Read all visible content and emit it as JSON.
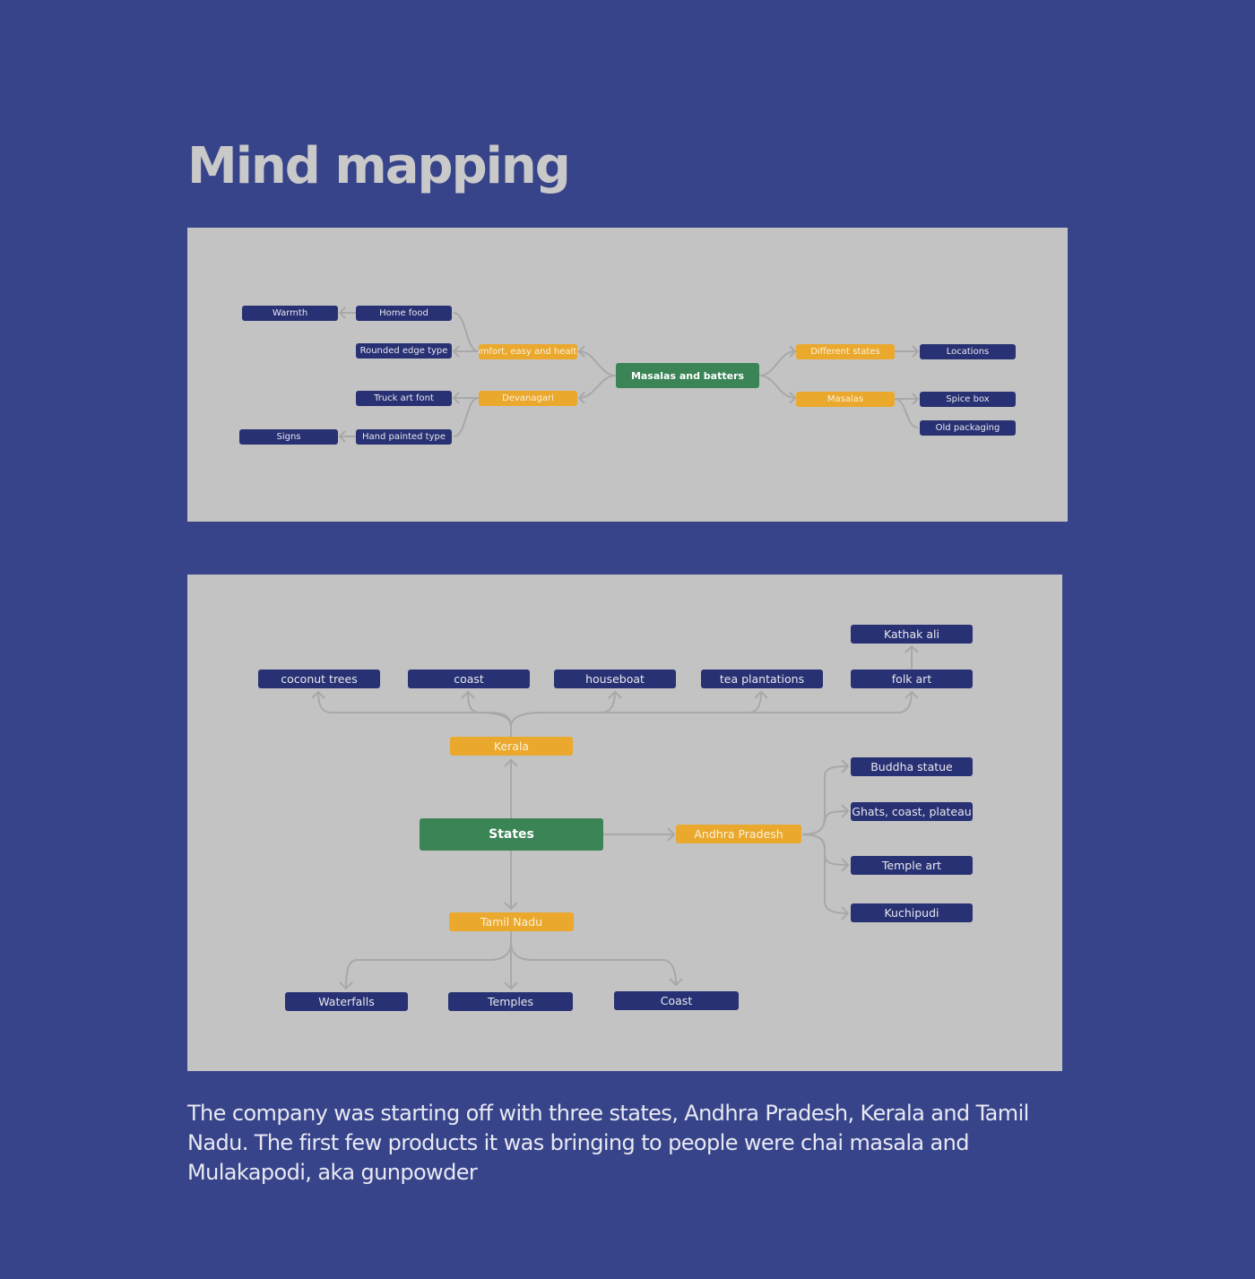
{
  "title": "Mind mapping",
  "map1": {
    "root": "Masalas and batters",
    "comfort": "Comfort, easy and healthy",
    "devanagari": "Devanagari",
    "home_food": "Home food",
    "warmth": "Warmth",
    "rounded": "Rounded edge type",
    "truck": "Truck art font",
    "hand_painted": "Hand painted type",
    "signs": "Signs",
    "different_states": "Different states",
    "locations": "Locations",
    "masalas": "Masalas",
    "spice_box": "Spice box",
    "old_packaging": "Old packaging"
  },
  "map2": {
    "root": "States",
    "kerala": "Kerala",
    "andhra": "Andhra Pradesh",
    "tamil": "Tamil Nadu",
    "coconut": "coconut trees",
    "coast_k": "coast",
    "houseboat": "houseboat",
    "tea": "tea plantations",
    "folk": "folk art",
    "kathak": "Kathak ali",
    "buddha": "Buddha statue",
    "ghats": "Ghats, coast, plateau",
    "temple_art": "Temple art",
    "kuchipudi": "Kuchipudi",
    "waterfalls": "Waterfalls",
    "temples": "Temples",
    "coast_t": "Coast"
  },
  "caption": "The company was starting off with three states, Andhra Pradesh, Kerala and Tamil Nadu. The first few products it was bringing to people were chai masala and Mulakapodi, aka gunpowder",
  "colors": {
    "background": "#37448a",
    "panel": "#c3c3c3",
    "blue_node": "#283173",
    "orange_node": "#eaa82d",
    "green_node": "#3a8456"
  }
}
